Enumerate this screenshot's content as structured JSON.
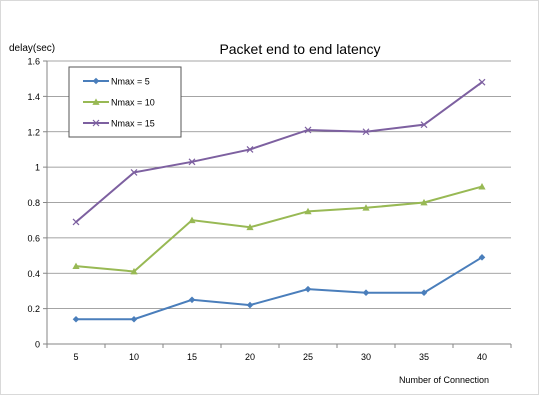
{
  "chart_data": {
    "type": "line",
    "title": "Packet end to end latency",
    "ylabel": "delay(sec)",
    "xlabel": "Number of Connection",
    "categories": [
      "5",
      "10",
      "15",
      "20",
      "25",
      "30",
      "35",
      "40"
    ],
    "ylim": [
      0,
      1.6
    ],
    "yticks": [
      "0",
      "0.2",
      "0.4",
      "0.6",
      "0.8",
      "1",
      "1.2",
      "1.4",
      "1.6"
    ],
    "grid": true,
    "legend_position": "top-left",
    "series": [
      {
        "name": "Nmax = 5",
        "color": "#4a7ebb",
        "marker": "diamond",
        "values": [
          0.14,
          0.14,
          0.25,
          0.22,
          0.31,
          0.29,
          0.29,
          0.49
        ]
      },
      {
        "name": "Nmax = 10",
        "color": "#98b954",
        "marker": "triangle",
        "values": [
          0.44,
          0.41,
          0.7,
          0.66,
          0.75,
          0.77,
          0.8,
          0.89
        ]
      },
      {
        "name": "Nmax = 15",
        "color": "#7d60a0",
        "marker": "cross",
        "values": [
          0.69,
          0.97,
          1.03,
          1.1,
          1.21,
          1.2,
          1.24,
          1.48
        ]
      }
    ]
  }
}
